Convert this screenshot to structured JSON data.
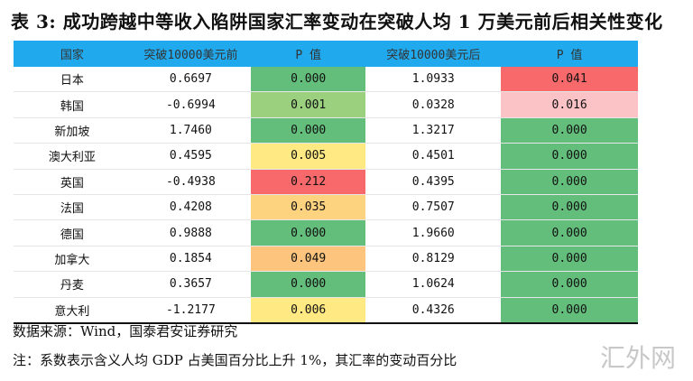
{
  "title": "表 3: 成功跨越中等收入陷阱国家汇率变动在突破人均 1 万美元前后相关性变化",
  "headers": [
    "国家",
    "突破10000美元前",
    "P 值",
    "突破10000美元后",
    "P 值"
  ],
  "rows": [
    {
      "country": "日本",
      "before": "0.6697",
      "p1": "0.000",
      "after": "1.0933",
      "p2": "0.041",
      "c1": "#63be7b",
      "c2": "#f8696b"
    },
    {
      "country": "韩国",
      "before": "-0.6994",
      "p1": "0.001",
      "after": "0.0328",
      "p2": "0.016",
      "c1": "#9bd07f",
      "c2": "#fbc3c6"
    },
    {
      "country": "新加坡",
      "before": "1.7460",
      "p1": "0.000",
      "after": "1.3217",
      "p2": "0.000",
      "c1": "#63be7b",
      "c2": "#63be7b"
    },
    {
      "country": "澳大利亚",
      "before": "0.4595",
      "p1": "0.005",
      "after": "0.4501",
      "p2": "0.000",
      "c1": "#fee983",
      "c2": "#63be7b"
    },
    {
      "country": "英国",
      "before": "-0.4938",
      "p1": "0.212",
      "after": "0.4395",
      "p2": "0.000",
      "c1": "#f8696b",
      "c2": "#63be7b"
    },
    {
      "country": "法国",
      "before": "0.4208",
      "p1": "0.035",
      "after": "0.7507",
      "p2": "0.000",
      "c1": "#fdd380",
      "c2": "#63be7b"
    },
    {
      "country": "德国",
      "before": "0.9888",
      "p1": "0.000",
      "after": "1.9660",
      "p2": "0.000",
      "c1": "#63be7b",
      "c2": "#63be7b"
    },
    {
      "country": "加拿大",
      "before": "0.1854",
      "p1": "0.049",
      "after": "0.8129",
      "p2": "0.000",
      "c1": "#fcc47c",
      "c2": "#63be7b"
    },
    {
      "country": "丹麦",
      "before": "0.3657",
      "p1": "0.000",
      "after": "1.0624",
      "p2": "0.000",
      "c1": "#63be7b",
      "c2": "#63be7b"
    },
    {
      "country": "意大利",
      "before": "-1.2177",
      "p1": "0.006",
      "after": "0.4326",
      "p2": "0.000",
      "c1": "#fee983",
      "c2": "#63be7b"
    }
  ],
  "source": "数据来源：Wind，国泰君安证券研究",
  "note": "注：系数表示含义人均 GDP 占美国百分比上升 1%，其汇率的变动百分比",
  "watermark": "汇外网"
}
